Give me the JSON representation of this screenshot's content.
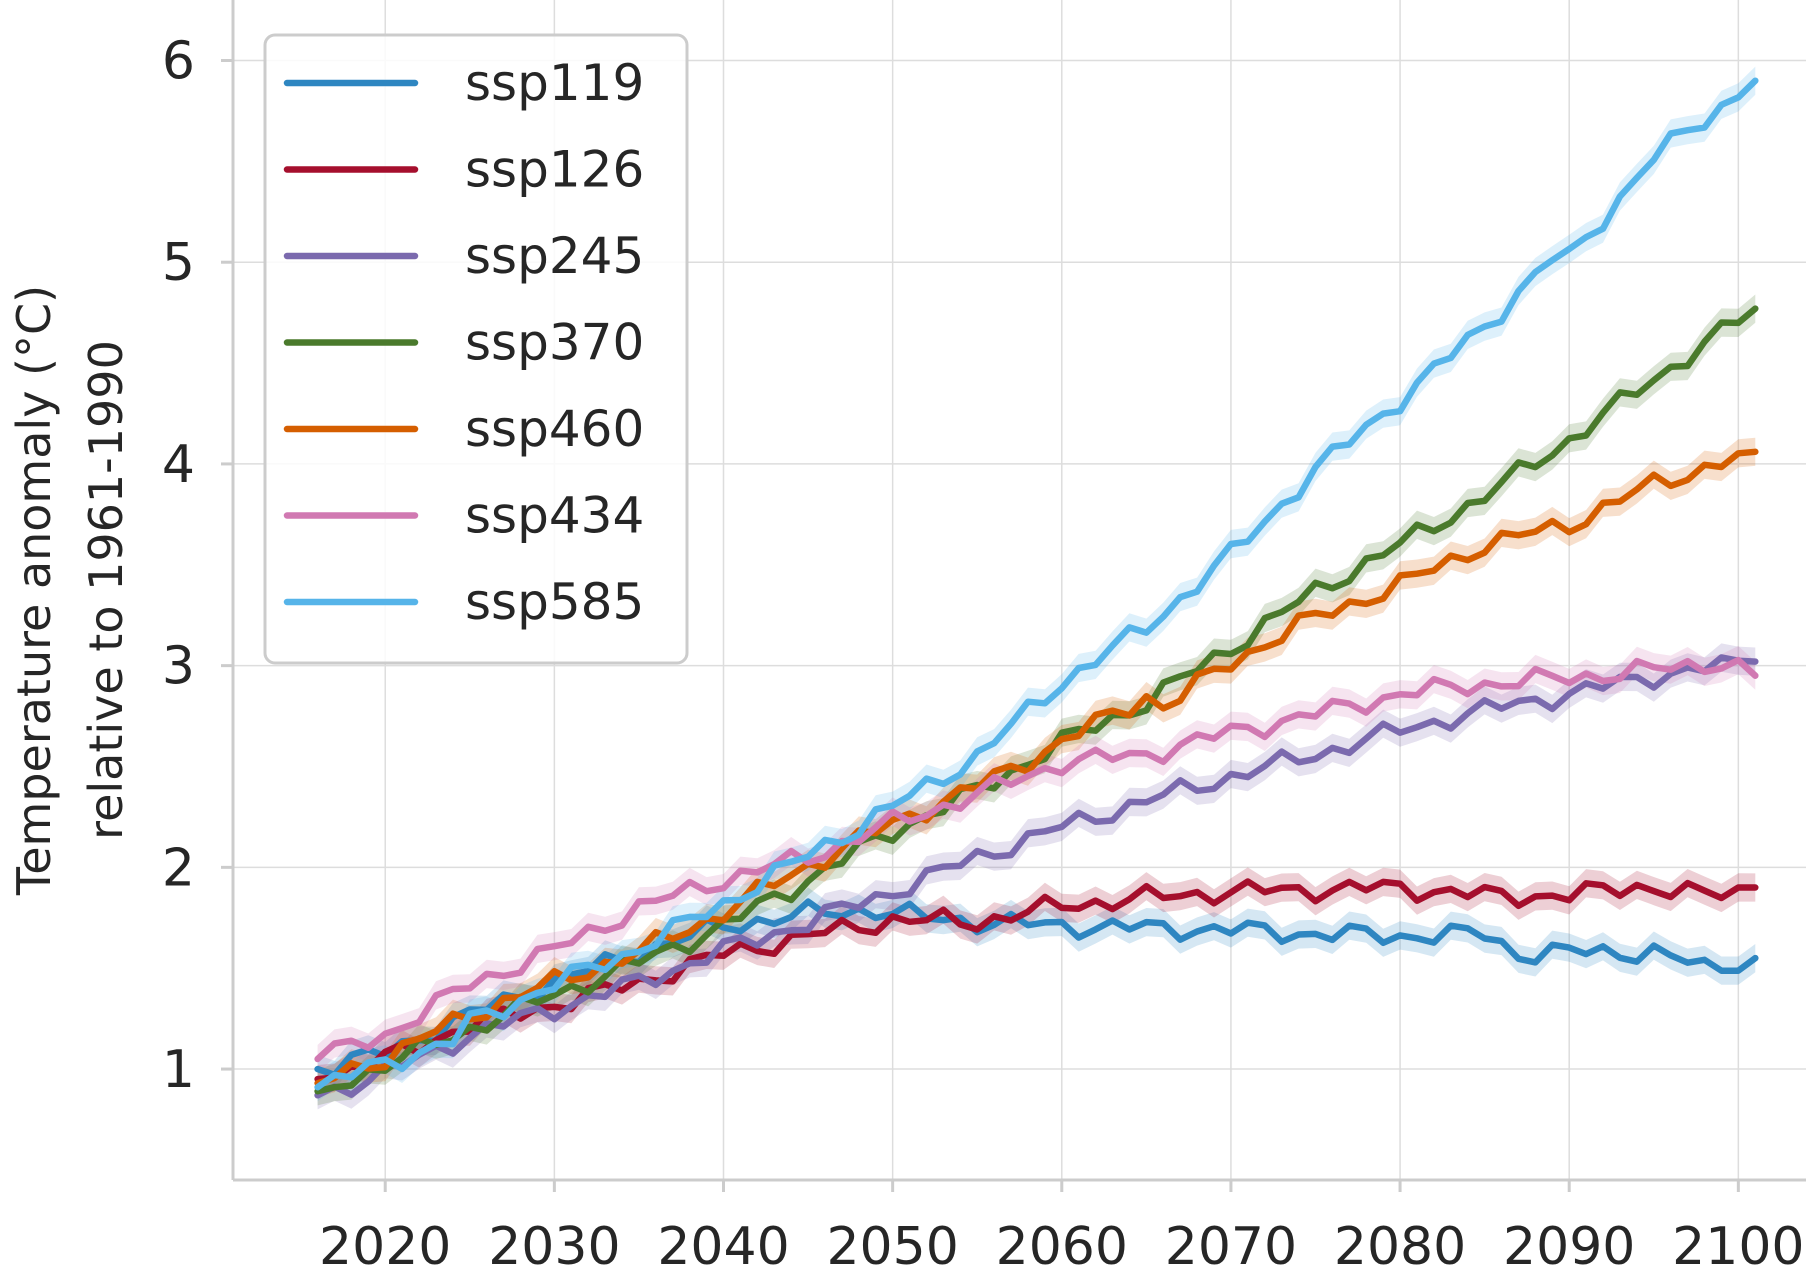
{
  "chart_data": {
    "type": "line",
    "title": "",
    "xlabel": "",
    "ylabel_lines": [
      "Temperature anomaly (°C)",
      "relative to 1961-1990"
    ],
    "xlim": [
      2011,
      2104
    ],
    "ylim": [
      0.45,
      6.3
    ],
    "xticks": [
      2020,
      2030,
      2040,
      2050,
      2060,
      2070,
      2080,
      2090,
      2100
    ],
    "yticks": [
      1,
      2,
      3,
      4,
      5,
      6
    ],
    "grid": true,
    "legend_position": "top-left",
    "uncertainty_bands": true,
    "series": [
      {
        "name": "ssp119",
        "color": "#2E86C1",
        "points": [
          [
            2016,
            1.0
          ],
          [
            2020,
            1.08
          ],
          [
            2025,
            1.27
          ],
          [
            2030,
            1.43
          ],
          [
            2035,
            1.58
          ],
          [
            2040,
            1.71
          ],
          [
            2045,
            1.77
          ],
          [
            2049,
            1.79
          ],
          [
            2052,
            1.75
          ],
          [
            2055,
            1.73
          ],
          [
            2060,
            1.71
          ],
          [
            2065,
            1.7
          ],
          [
            2070,
            1.69
          ],
          [
            2075,
            1.67
          ],
          [
            2080,
            1.66
          ],
          [
            2085,
            1.67
          ],
          [
            2087,
            1.57
          ],
          [
            2090,
            1.58
          ],
          [
            2095,
            1.58
          ],
          [
            2098,
            1.5
          ],
          [
            2101,
            1.55
          ]
        ]
      },
      {
        "name": "ssp126",
        "color": "#A50F2D",
        "points": [
          [
            2016,
            0.95
          ],
          [
            2020,
            1.05
          ],
          [
            2025,
            1.22
          ],
          [
            2030,
            1.32
          ],
          [
            2035,
            1.43
          ],
          [
            2040,
            1.57
          ],
          [
            2045,
            1.66
          ],
          [
            2050,
            1.74
          ],
          [
            2055,
            1.73
          ],
          [
            2060,
            1.81
          ],
          [
            2065,
            1.85
          ],
          [
            2070,
            1.88
          ],
          [
            2075,
            1.89
          ],
          [
            2080,
            1.9
          ],
          [
            2085,
            1.86
          ],
          [
            2090,
            1.86
          ],
          [
            2094,
            1.91
          ],
          [
            2098,
            1.86
          ],
          [
            2101,
            1.9
          ]
        ]
      },
      {
        "name": "ssp245",
        "color": "#7B6AAE",
        "points": [
          [
            2016,
            0.87
          ],
          [
            2020,
            0.98
          ],
          [
            2025,
            1.17
          ],
          [
            2030,
            1.3
          ],
          [
            2035,
            1.43
          ],
          [
            2040,
            1.59
          ],
          [
            2045,
            1.73
          ],
          [
            2050,
            1.88
          ],
          [
            2055,
            2.05
          ],
          [
            2060,
            2.2
          ],
          [
            2065,
            2.33
          ],
          [
            2070,
            2.45
          ],
          [
            2075,
            2.56
          ],
          [
            2080,
            2.68
          ],
          [
            2085,
            2.78
          ],
          [
            2090,
            2.86
          ],
          [
            2095,
            2.95
          ],
          [
            2101,
            3.02
          ]
        ]
      },
      {
        "name": "ssp370",
        "color": "#4A7A2C",
        "points": [
          [
            2016,
            0.89
          ],
          [
            2020,
            1.02
          ],
          [
            2025,
            1.2
          ],
          [
            2030,
            1.37
          ],
          [
            2035,
            1.53
          ],
          [
            2040,
            1.71
          ],
          [
            2045,
            1.94
          ],
          [
            2050,
            2.18
          ],
          [
            2055,
            2.38
          ],
          [
            2060,
            2.62
          ],
          [
            2065,
            2.82
          ],
          [
            2070,
            3.09
          ],
          [
            2075,
            3.37
          ],
          [
            2080,
            3.6
          ],
          [
            2085,
            3.84
          ],
          [
            2090,
            4.12
          ],
          [
            2095,
            4.42
          ],
          [
            2101,
            4.77
          ]
        ]
      },
      {
        "name": "ssp460",
        "color": "#D55E00",
        "points": [
          [
            2016,
            0.93
          ],
          [
            2020,
            1.06
          ],
          [
            2025,
            1.27
          ],
          [
            2030,
            1.43
          ],
          [
            2035,
            1.58
          ],
          [
            2040,
            1.78
          ],
          [
            2045,
            2.01
          ],
          [
            2050,
            2.22
          ],
          [
            2055,
            2.4
          ],
          [
            2060,
            2.62
          ],
          [
            2065,
            2.85
          ],
          [
            2066,
            2.79
          ],
          [
            2070,
            3.02
          ],
          [
            2075,
            3.24
          ],
          [
            2080,
            3.4
          ],
          [
            2085,
            3.6
          ],
          [
            2090,
            3.7
          ],
          [
            2095,
            3.9
          ],
          [
            2101,
            4.06
          ]
        ]
      },
      {
        "name": "ssp434",
        "color": "#D179B2",
        "points": [
          [
            2016,
            1.05
          ],
          [
            2020,
            1.17
          ],
          [
            2025,
            1.42
          ],
          [
            2030,
            1.59
          ],
          [
            2035,
            1.8
          ],
          [
            2040,
            1.94
          ],
          [
            2045,
            2.05
          ],
          [
            2050,
            2.22
          ],
          [
            2055,
            2.36
          ],
          [
            2060,
            2.52
          ],
          [
            2065,
            2.56
          ],
          [
            2070,
            2.67
          ],
          [
            2075,
            2.76
          ],
          [
            2080,
            2.86
          ],
          [
            2085,
            2.91
          ],
          [
            2090,
            2.94
          ],
          [
            2095,
            2.98
          ],
          [
            2099,
            3.02
          ],
          [
            2101,
            2.95
          ]
        ]
      },
      {
        "name": "ssp585",
        "color": "#56B4E9",
        "points": [
          [
            2016,
            0.91
          ],
          [
            2020,
            1.03
          ],
          [
            2024,
            1.14
          ],
          [
            2025,
            1.23
          ],
          [
            2030,
            1.42
          ],
          [
            2035,
            1.6
          ],
          [
            2040,
            1.82
          ],
          [
            2045,
            2.06
          ],
          [
            2050,
            2.3
          ],
          [
            2055,
            2.55
          ],
          [
            2060,
            2.92
          ],
          [
            2065,
            3.19
          ],
          [
            2070,
            3.55
          ],
          [
            2075,
            3.97
          ],
          [
            2080,
            4.32
          ],
          [
            2085,
            4.68
          ],
          [
            2089,
            5.02
          ],
          [
            2090,
            5.02
          ],
          [
            2095,
            5.52
          ],
          [
            2101,
            5.9
          ]
        ]
      }
    ]
  }
}
